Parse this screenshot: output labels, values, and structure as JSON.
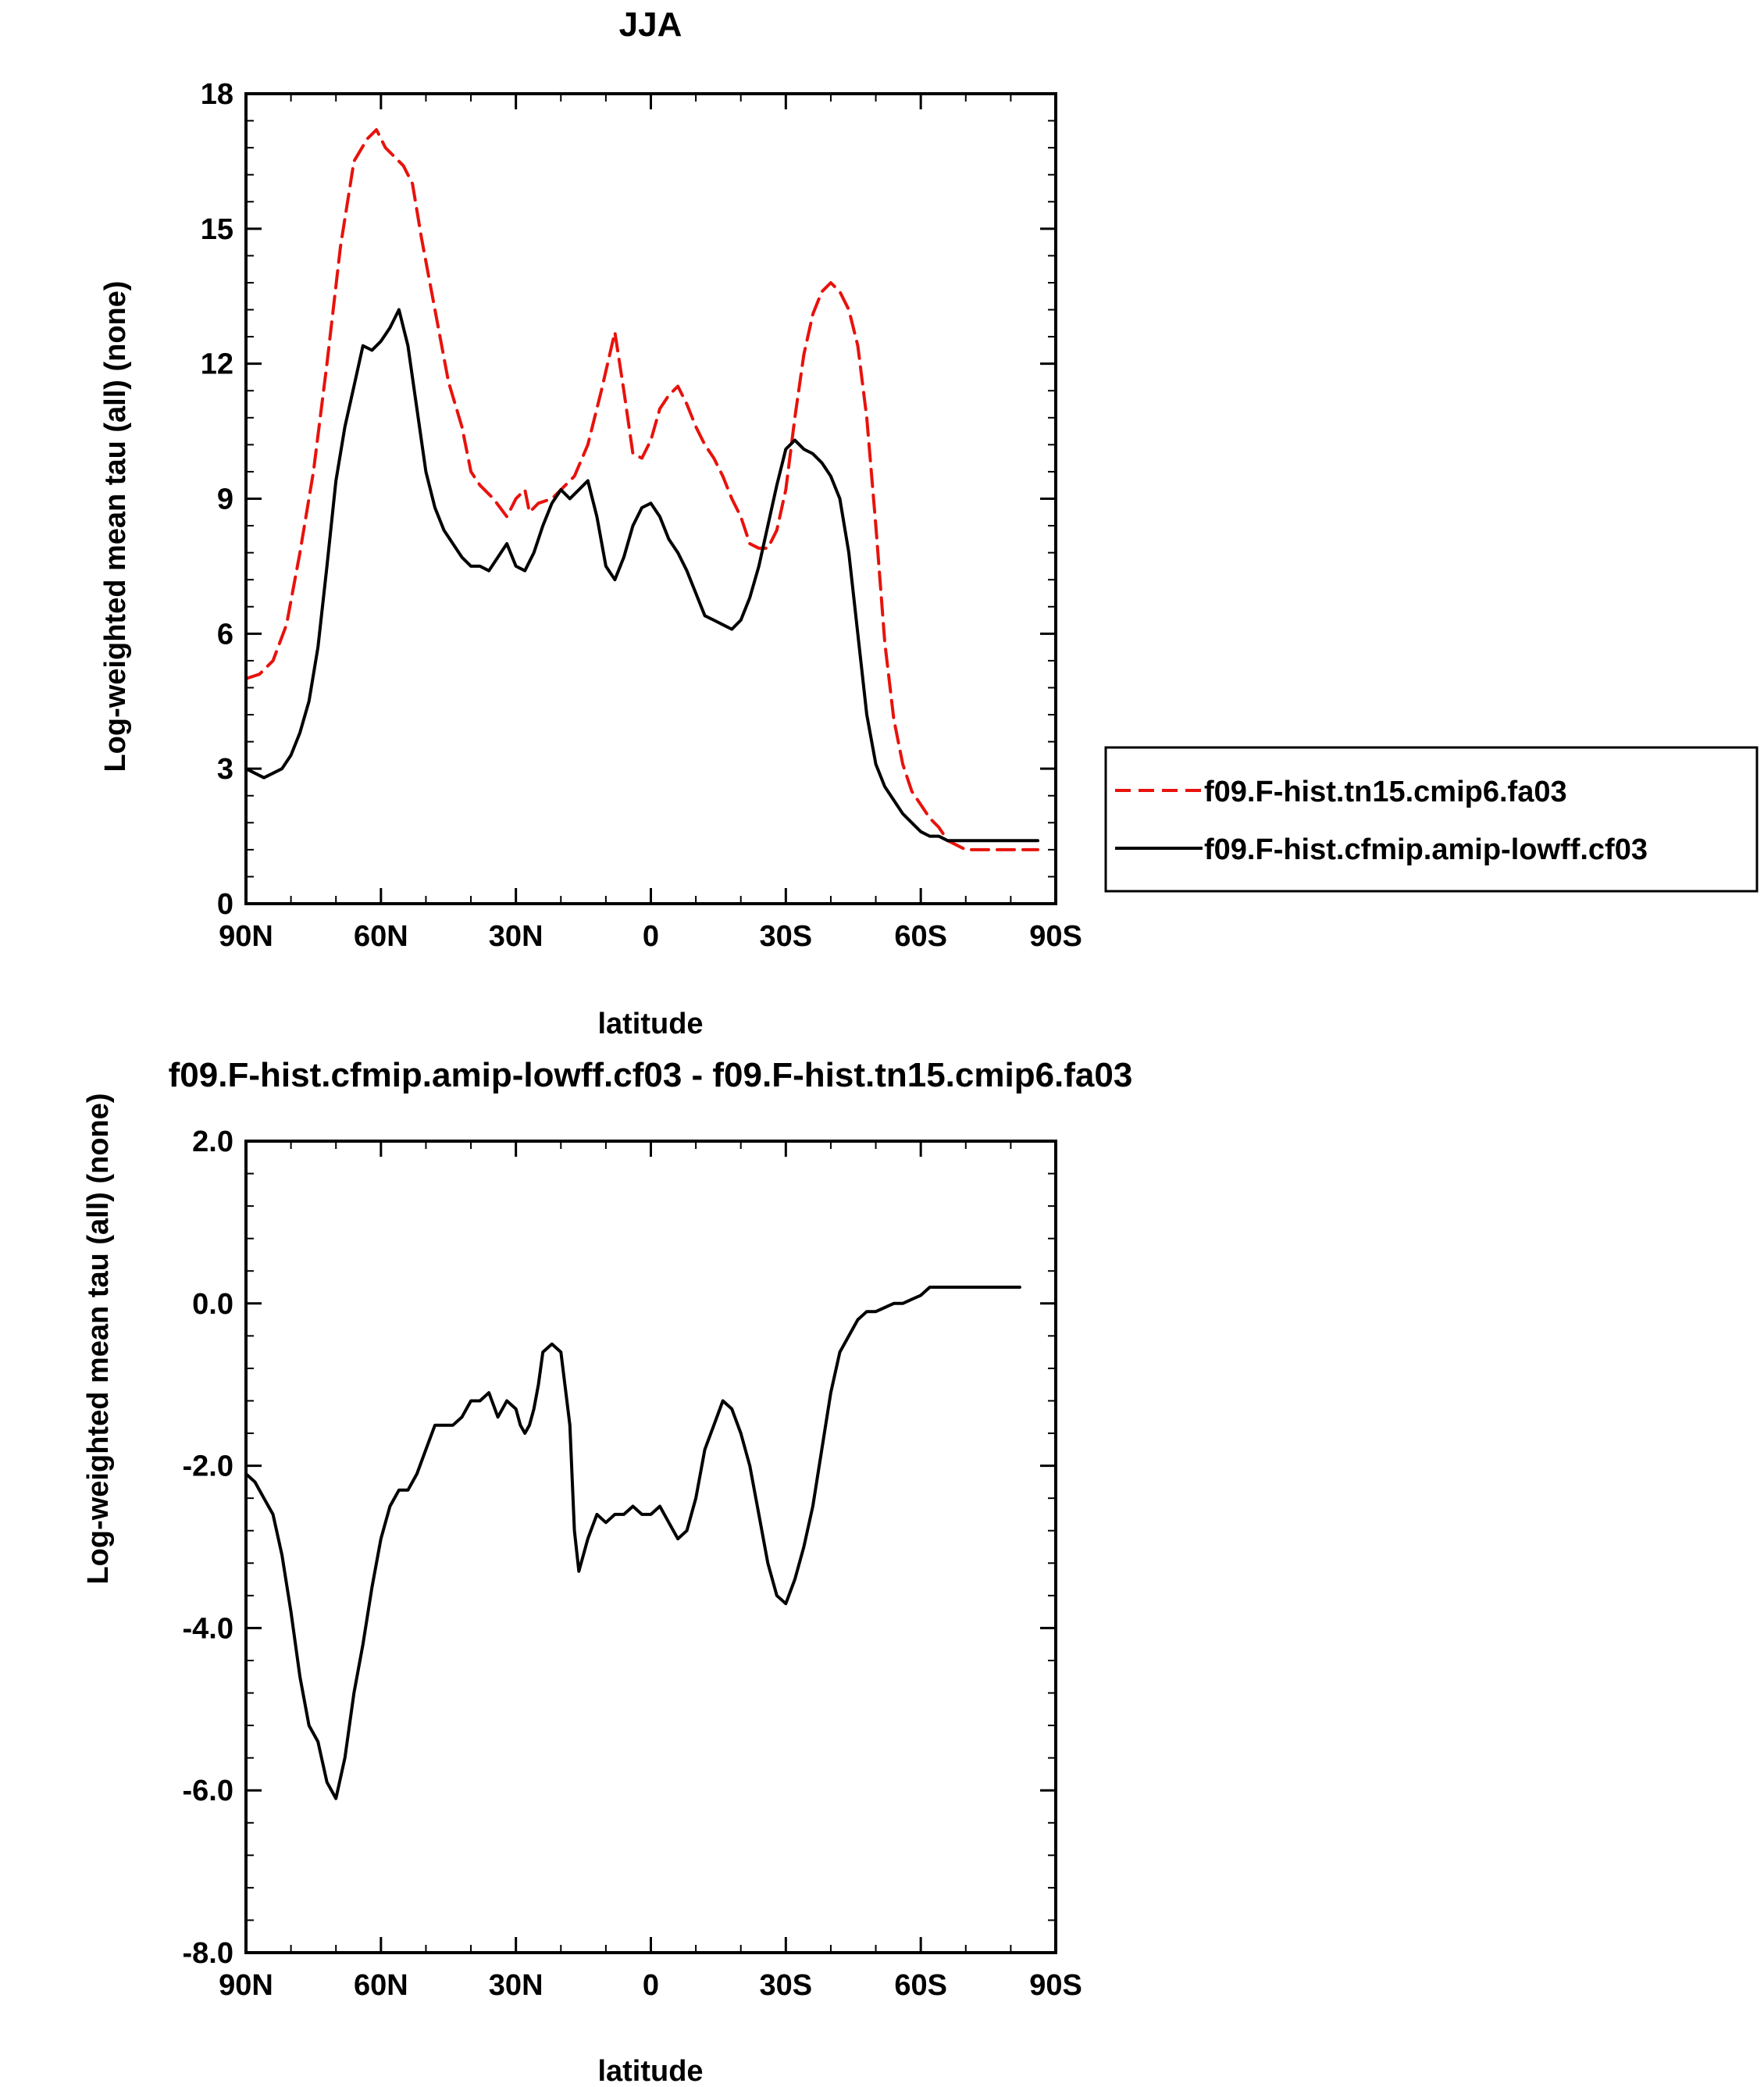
{
  "chart_data": [
    {
      "type": "line",
      "title": "JJA",
      "xlabel": "latitude",
      "ylabel": "Log-weighted mean tau (all) (none)",
      "xlim": [
        90,
        -90
      ],
      "ylim": [
        0,
        18
      ],
      "yticks": [
        0,
        3,
        6,
        9,
        12,
        15,
        18
      ],
      "ytick_labels": [
        "0",
        "3",
        "6",
        "9",
        "12",
        "15",
        "18"
      ],
      "xticks": [
        90,
        60,
        30,
        0,
        -30,
        -60,
        -90
      ],
      "xtick_labels": [
        "90N",
        "60N",
        "30N",
        "0",
        "30S",
        "60S",
        "90S"
      ],
      "grid": false,
      "legend": "right",
      "series": [
        {
          "name": "f09.F-hist.tn15.cmip6.fa03",
          "color": "#e8120c",
          "dash": "dashed",
          "x": [
            90,
            87,
            84,
            81,
            78,
            75,
            72,
            69,
            66,
            63,
            61,
            59,
            57,
            55,
            53,
            51,
            48,
            45,
            42,
            40,
            38,
            35,
            32,
            30,
            28,
            27,
            25,
            22,
            20,
            17,
            14,
            11,
            8,
            6,
            4,
            2,
            0,
            -2,
            -4,
            -6,
            -8,
            -10,
            -12,
            -14,
            -16,
            -18,
            -20,
            -22,
            -24,
            -26,
            -28,
            -30,
            -32,
            -34,
            -36,
            -38,
            -40,
            -42,
            -44,
            -46,
            -48,
            -50,
            -52,
            -54,
            -56,
            -58,
            -60,
            -62,
            -64,
            -66,
            -68,
            -70,
            -72,
            -74,
            -76,
            -78,
            -80,
            -82,
            -84,
            -86
          ],
          "y": [
            5.0,
            5.1,
            5.4,
            6.2,
            7.8,
            9.6,
            12.0,
            14.6,
            16.5,
            17.0,
            17.2,
            16.8,
            16.6,
            16.4,
            16.0,
            14.8,
            13.2,
            11.6,
            10.6,
            9.6,
            9.3,
            9.0,
            8.6,
            9.0,
            9.2,
            8.7,
            8.9,
            9.0,
            9.2,
            9.5,
            10.2,
            11.4,
            12.7,
            11.4,
            10.0,
            9.9,
            10.3,
            11.0,
            11.3,
            11.5,
            11.1,
            10.6,
            10.2,
            9.9,
            9.5,
            9.0,
            8.6,
            8.0,
            7.9,
            7.9,
            8.3,
            9.2,
            10.8,
            12.2,
            13.1,
            13.6,
            13.8,
            13.6,
            13.2,
            12.4,
            10.8,
            8.4,
            5.8,
            4.1,
            3.1,
            2.5,
            2.2,
            1.9,
            1.7,
            1.4,
            1.3,
            1.2,
            1.2,
            1.2,
            1.2,
            1.2,
            1.2,
            1.2,
            1.2,
            1.2
          ]
        },
        {
          "name": "f09.F-hist.cfmip.amip-lowff.cf03",
          "color": "#000000",
          "dash": "solid",
          "x": [
            90,
            88,
            86,
            84,
            82,
            80,
            78,
            76,
            74,
            72,
            70,
            68,
            66,
            64,
            62,
            60,
            58,
            56,
            54,
            52,
            50,
            48,
            46,
            44,
            42,
            40,
            38,
            36,
            34,
            32,
            30,
            28,
            26,
            24,
            22,
            20,
            18,
            16,
            14,
            12,
            10,
            8,
            6,
            4,
            2,
            0,
            -2,
            -4,
            -6,
            -8,
            -10,
            -12,
            -14,
            -16,
            -18,
            -20,
            -22,
            -24,
            -26,
            -28,
            -30,
            -32,
            -34,
            -36,
            -38,
            -40,
            -42,
            -44,
            -46,
            -48,
            -50,
            -52,
            -54,
            -56,
            -58,
            -60,
            -62,
            -64,
            -66,
            -68,
            -70,
            -72,
            -74,
            -76,
            -78,
            -80,
            -82,
            -84,
            -86
          ],
          "y": [
            3.0,
            2.9,
            2.8,
            2.9,
            3.0,
            3.3,
            3.8,
            4.5,
            5.7,
            7.5,
            9.4,
            10.6,
            11.5,
            12.4,
            12.3,
            12.5,
            12.8,
            13.2,
            12.4,
            11.0,
            9.6,
            8.8,
            8.3,
            8.0,
            7.7,
            7.5,
            7.5,
            7.4,
            7.7,
            8.0,
            7.5,
            7.4,
            7.8,
            8.4,
            8.9,
            9.2,
            9.0,
            9.2,
            9.4,
            8.6,
            7.5,
            7.2,
            7.7,
            8.4,
            8.8,
            8.9,
            8.6,
            8.1,
            7.8,
            7.4,
            6.9,
            6.4,
            6.3,
            6.2,
            6.1,
            6.3,
            6.8,
            7.5,
            8.4,
            9.3,
            10.1,
            10.3,
            10.1,
            10.0,
            9.8,
            9.5,
            9.0,
            7.8,
            6.0,
            4.2,
            3.1,
            2.6,
            2.3,
            2.0,
            1.8,
            1.6,
            1.5,
            1.5,
            1.4,
            1.4,
            1.4,
            1.4,
            1.4,
            1.4,
            1.4,
            1.4,
            1.4,
            1.4,
            1.4
          ]
        }
      ]
    },
    {
      "type": "line",
      "title": "f09.F-hist.cfmip.amip-lowff.cf03 - f09.F-hist.tn15.cmip6.fa03",
      "xlabel": "latitude",
      "ylabel": "Log-weighted mean tau (all) (none)",
      "xlim": [
        90,
        -90
      ],
      "ylim": [
        -8,
        2
      ],
      "yticks": [
        -8,
        -6,
        -4,
        -2,
        0,
        2
      ],
      "ytick_labels": [
        "-8.0",
        "-6.0",
        "-4.0",
        "-2.0",
        "0.0",
        "2.0"
      ],
      "xticks": [
        90,
        60,
        30,
        0,
        -30,
        -60,
        -90
      ],
      "xtick_labels": [
        "90N",
        "60N",
        "30N",
        "0",
        "30S",
        "60S",
        "90S"
      ],
      "grid": false,
      "series": [
        {
          "color": "#000000",
          "dash": "solid",
          "x": [
            90,
            88,
            86,
            84,
            82,
            80,
            78,
            76,
            74,
            72,
            70,
            68,
            66,
            64,
            62,
            60,
            58,
            56,
            54,
            52,
            50,
            48,
            46,
            44,
            42,
            40,
            38,
            36,
            34,
            32,
            30,
            29,
            28,
            27,
            26,
            25,
            24,
            22,
            20,
            18,
            17,
            16,
            14,
            12,
            10,
            8,
            6,
            4,
            2,
            0,
            -2,
            -4,
            -6,
            -8,
            -10,
            -12,
            -14,
            -16,
            -18,
            -20,
            -22,
            -24,
            -26,
            -28,
            -30,
            -32,
            -34,
            -36,
            -38,
            -40,
            -42,
            -44,
            -46,
            -48,
            -50,
            -52,
            -54,
            -56,
            -58,
            -60,
            -62,
            -64,
            -66,
            -68,
            -70,
            -72,
            -74,
            -76,
            -78,
            -80,
            -82
          ],
          "y": [
            -2.1,
            -2.2,
            -2.4,
            -2.6,
            -3.1,
            -3.8,
            -4.6,
            -5.2,
            -5.4,
            -5.9,
            -6.1,
            -5.6,
            -4.8,
            -4.2,
            -3.5,
            -2.9,
            -2.5,
            -2.3,
            -2.3,
            -2.1,
            -1.8,
            -1.5,
            -1.5,
            -1.5,
            -1.4,
            -1.2,
            -1.2,
            -1.1,
            -1.4,
            -1.2,
            -1.3,
            -1.5,
            -1.6,
            -1.5,
            -1.3,
            -1.0,
            -0.6,
            -0.5,
            -0.6,
            -1.5,
            -2.8,
            -3.3,
            -2.9,
            -2.6,
            -2.7,
            -2.6,
            -2.6,
            -2.5,
            -2.6,
            -2.6,
            -2.5,
            -2.7,
            -2.9,
            -2.8,
            -2.4,
            -1.8,
            -1.5,
            -1.2,
            -1.3,
            -1.6,
            -2.0,
            -2.6,
            -3.2,
            -3.6,
            -3.7,
            -3.4,
            -3.0,
            -2.5,
            -1.8,
            -1.1,
            -0.6,
            -0.4,
            -0.2,
            -0.1,
            -0.1,
            -0.05,
            0.0,
            0.0,
            0.05,
            0.1,
            0.2,
            0.2,
            0.2,
            0.2,
            0.2,
            0.2,
            0.2,
            0.2,
            0.2,
            0.2,
            0.2
          ]
        }
      ]
    }
  ]
}
